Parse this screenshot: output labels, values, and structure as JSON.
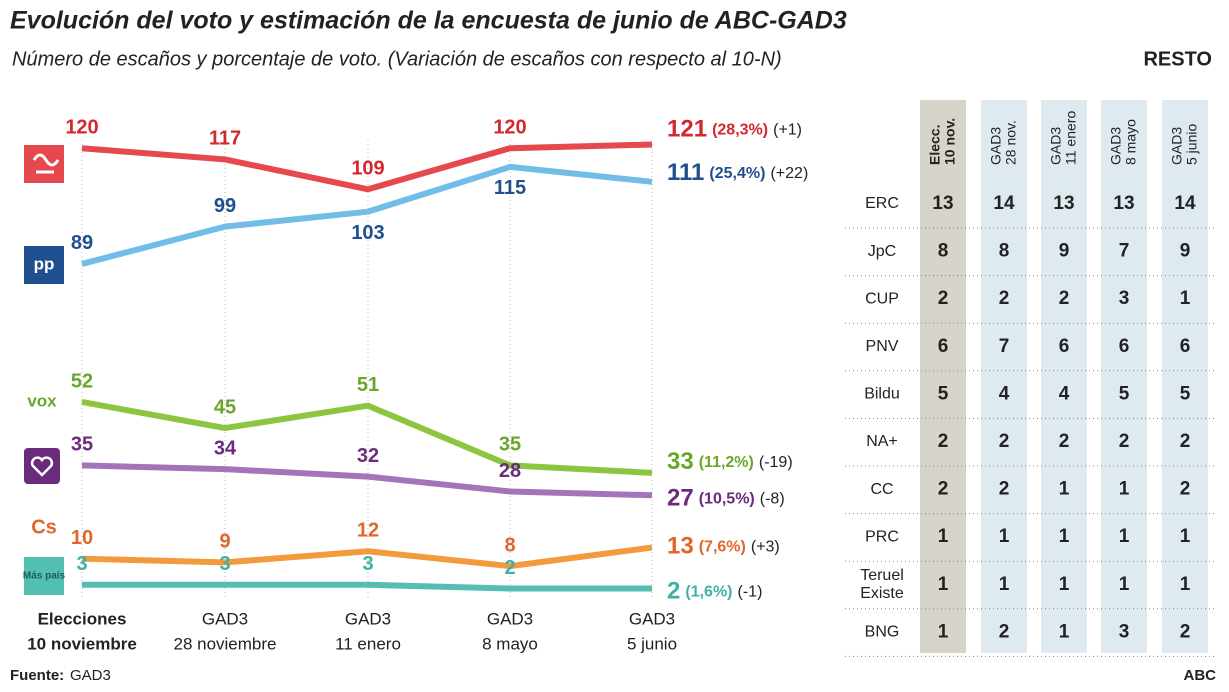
{
  "title": "Evolución del voto y estimación de la encuesta de junio de ABC-GAD3",
  "subtitle": "Número de escaños y porcentaje de voto. (Variación de escaños con respecto al 10-N)",
  "source_label": "Fuente:",
  "source": "GAD3",
  "brand": "ABC",
  "chart_data": {
    "type": "line",
    "categories": [
      [
        "Elecciones",
        "10 noviembre"
      ],
      [
        "GAD3",
        "28 noviembre"
      ],
      [
        "GAD3",
        "11 enero"
      ],
      [
        "GAD3",
        "8 mayo"
      ],
      [
        "GAD3",
        "5 junio"
      ]
    ],
    "ylim": [
      0,
      134
    ],
    "series": [
      {
        "name": "PSOE",
        "color": "#e5484d",
        "label_color": "#d4282f",
        "values": [
          120,
          117,
          109,
          120,
          121
        ],
        "vote_share": 28.3,
        "vote_share_label": "(28,3%)",
        "change": 1,
        "change_label": "(+1)"
      },
      {
        "name": "PP",
        "color": "#72bde8",
        "label_color": "#1f4f8f",
        "logo": "pp",
        "values": [
          89,
          99,
          103,
          115,
          111
        ],
        "vote_share": 25.4,
        "vote_share_label": "(25,4%)",
        "change": 22,
        "change_label": "(+22)"
      },
      {
        "name": "Vox",
        "color": "#8dc540",
        "label_color": "#6aa62a",
        "logo": "vox",
        "values": [
          52,
          45,
          51,
          35,
          33
        ],
        "vote_share": 11.2,
        "vote_share_label": "(11,2%)",
        "change": -19,
        "change_label": "(-19)"
      },
      {
        "name": "Unidas Podemos",
        "color": "#a474bb",
        "label_color": "#6b2b7d",
        "values": [
          35,
          34,
          32,
          28,
          27
        ],
        "vote_share": 10.5,
        "vote_share_label": "(10,5%)",
        "change": -8,
        "change_label": "(-8)"
      },
      {
        "name": "Cs",
        "color": "#f39a3d",
        "label_color": "#e0662a",
        "logo": "Cs",
        "values": [
          10,
          9,
          12,
          8,
          13
        ],
        "vote_share": 7.6,
        "vote_share_label": "(7,6%)",
        "change": 3,
        "change_label": "(+3)"
      },
      {
        "name": "Más País",
        "color": "#52bfb2",
        "label_color": "#3db2a5",
        "logo": "Más país",
        "values": [
          3,
          3,
          3,
          2,
          2
        ],
        "vote_share": 1.6,
        "vote_share_label": "(1,6%)",
        "change": -1,
        "change_label": "(-1)"
      }
    ]
  },
  "table": {
    "title": "RESTO",
    "columns": [
      [
        "Elecc.",
        "10 nov."
      ],
      [
        "GAD3",
        "28 nov."
      ],
      [
        "GAD3",
        "11 enero"
      ],
      [
        "GAD3",
        "8 mayo"
      ],
      [
        "GAD3",
        "5 junio"
      ]
    ],
    "rows": [
      {
        "label": [
          "ERC"
        ],
        "values": [
          13,
          14,
          13,
          13,
          14
        ]
      },
      {
        "label": [
          "JpC"
        ],
        "values": [
          8,
          8,
          9,
          7,
          9
        ]
      },
      {
        "label": [
          "CUP"
        ],
        "values": [
          2,
          2,
          2,
          3,
          1
        ]
      },
      {
        "label": [
          "PNV"
        ],
        "values": [
          6,
          7,
          6,
          6,
          6
        ]
      },
      {
        "label": [
          "Bildu"
        ],
        "values": [
          5,
          4,
          4,
          5,
          5
        ]
      },
      {
        "label": [
          "NA+"
        ],
        "values": [
          2,
          2,
          2,
          2,
          2
        ]
      },
      {
        "label": [
          "CC"
        ],
        "values": [
          2,
          2,
          1,
          1,
          2
        ]
      },
      {
        "label": [
          "PRC"
        ],
        "values": [
          1,
          1,
          1,
          1,
          1
        ]
      },
      {
        "label": [
          "Teruel",
          "Existe"
        ],
        "values": [
          1,
          1,
          1,
          1,
          1
        ]
      },
      {
        "label": [
          "BNG"
        ],
        "values": [
          1,
          2,
          1,
          3,
          2
        ]
      }
    ]
  }
}
